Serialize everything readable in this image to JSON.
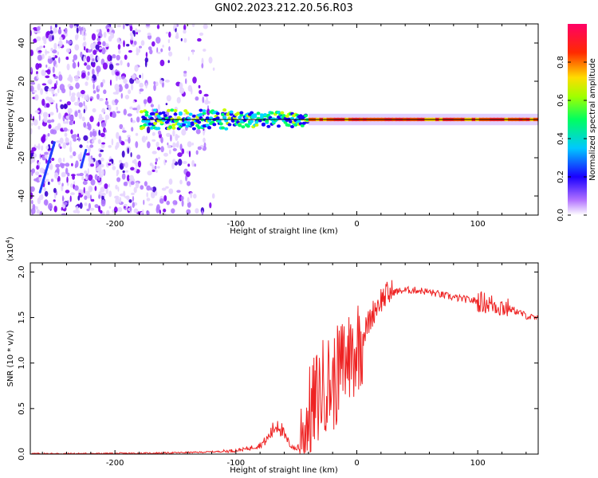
{
  "title": "GN02.2023.212.20.56.R03",
  "chart_data": [
    {
      "type": "heatmap",
      "xlabel": "Height of straight line (km)",
      "ylabel": "Frequency (Hz)",
      "xlim": [
        -270,
        150
      ],
      "ylim": [
        -50,
        50
      ],
      "xticks": [
        -200,
        -100,
        0,
        100
      ],
      "yticks": [
        -40,
        -20,
        0,
        20,
        40
      ],
      "xtick_labels": [
        "-200",
        "-100",
        "0",
        "100"
      ],
      "ytick_labels": [
        "-40",
        "-20",
        "0",
        "20",
        "40"
      ],
      "colorbar": {
        "label": "Normalized spectral amplitude",
        "range": [
          0,
          1
        ],
        "ticks": [
          0.0,
          0.2,
          0.4,
          0.6,
          0.8
        ],
        "tick_labels": [
          "0.0",
          "0.2",
          "0.4",
          "0.6",
          "0.8"
        ],
        "colors": [
          "#ffffff",
          "#7a00ff",
          "#0000ff",
          "#00ffff",
          "#00ff00",
          "#ffff00",
          "#ff0000",
          "#ff0066"
        ]
      },
      "features": {
        "noise_region_x": [
          -270,
          -118
        ],
        "carrier_x": [
          -178,
          150
        ],
        "carrier_frequency": 0,
        "carrier_line_color": "#000000"
      }
    },
    {
      "type": "line",
      "xlabel": "Height of straight line (km)",
      "ylabel": "SNR (10 * v/v)",
      "scale_label": "(x10^4)",
      "xlim": [
        -270,
        150
      ],
      "ylim": [
        0,
        2.1
      ],
      "xticks": [
        -200,
        -100,
        0,
        100
      ],
      "yticks": [
        0.0,
        0.5,
        1.0,
        1.5,
        2.0
      ],
      "xtick_labels": [
        "-200",
        "-100",
        "0",
        "100"
      ],
      "ytick_labels": [
        "0.0",
        "0.5",
        "1.0",
        "1.5",
        "2.0"
      ],
      "series": [
        {
          "color": "#ee2222",
          "x": [
            -270,
            -250,
            -230,
            -210,
            -190,
            -170,
            -150,
            -130,
            -110,
            -100,
            -90,
            -80,
            -75,
            -70,
            -65,
            -60,
            -55,
            -50,
            -45,
            -40,
            -35,
            -30,
            -25,
            -20,
            -15,
            -10,
            -5,
            0,
            5,
            10,
            15,
            20,
            25,
            30,
            40,
            50,
            60,
            70,
            80,
            90,
            100,
            110,
            120,
            130,
            140,
            150
          ],
          "values": [
            0.005,
            0.005,
            0.005,
            0.006,
            0.008,
            0.01,
            0.015,
            0.02,
            0.03,
            0.04,
            0.06,
            0.1,
            0.15,
            0.25,
            0.35,
            0.2,
            0.1,
            0.05,
            0.2,
            0.4,
            0.55,
            0.7,
            0.8,
            0.75,
            0.9,
            1.0,
            1.1,
            1.2,
            1.3,
            1.45,
            1.6,
            1.7,
            1.75,
            1.78,
            1.8,
            1.8,
            1.78,
            1.75,
            1.72,
            1.7,
            1.68,
            1.65,
            1.62,
            1.58,
            1.52,
            1.48
          ]
        }
      ]
    }
  ]
}
